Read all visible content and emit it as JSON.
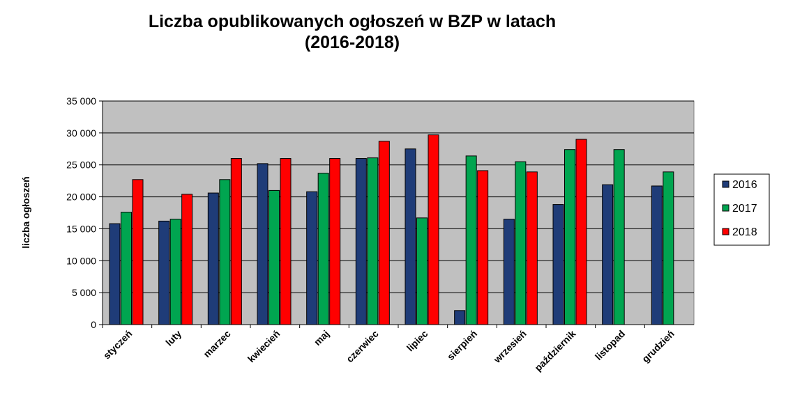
{
  "chart_data": {
    "type": "bar",
    "title_line1": "Liczba opublikowanych ogłoszeń w BZP w latach",
    "title_line2": "(2016-2018)",
    "ylabel": "liczba ogłoszeń",
    "xlabel": "",
    "ylim": [
      0,
      35000
    ],
    "yticks": [
      0,
      5000,
      10000,
      15000,
      20000,
      25000,
      30000,
      35000
    ],
    "ytick_labels": [
      "0",
      "5 000",
      "10 000",
      "15 000",
      "20 000",
      "25 000",
      "30 000",
      "35 000"
    ],
    "grid": true,
    "legend_position": "right",
    "categories": [
      "styczeń",
      "luty",
      "marzec",
      "kwiecień",
      "maj",
      "czerwiec",
      "lipiec",
      "sierpień",
      "wrzesień",
      "październik",
      "listopad",
      "grudzień"
    ],
    "series": [
      {
        "name": "2016",
        "color": "#1F3C78",
        "values": [
          15800,
          16200,
          20600,
          25200,
          20800,
          26000,
          27500,
          2200,
          16500,
          18800,
          21900,
          21700
        ]
      },
      {
        "name": "2017",
        "color": "#00A550",
        "values": [
          17600,
          16500,
          22700,
          21000,
          23700,
          26100,
          16700,
          26400,
          25500,
          27400,
          27400,
          23900
        ]
      },
      {
        "name": "2018",
        "color": "#FF0000",
        "values": [
          22700,
          20400,
          26000,
          26000,
          26000,
          28700,
          29700,
          24100,
          23900,
          29000,
          null,
          null
        ]
      }
    ]
  }
}
